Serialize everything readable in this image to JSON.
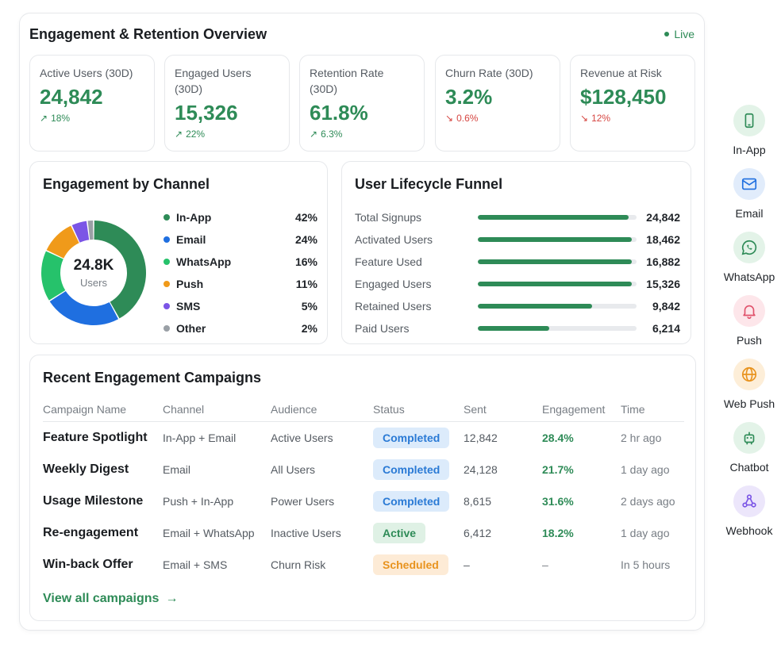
{
  "header": {
    "title": "Engagement & Retention Overview",
    "live": "Live"
  },
  "kpis": [
    {
      "label": "Active Users (30D)",
      "value": "24,842",
      "delta": "18%",
      "trend": "up"
    },
    {
      "label": "Engaged Users (30D)",
      "value": "15,326",
      "delta": "22%",
      "trend": "up"
    },
    {
      "label": "Retention Rate (30D)",
      "value": "61.8%",
      "delta": "6.3%",
      "trend": "up"
    },
    {
      "label": "Churn Rate (30D)",
      "value": "3.2%",
      "delta": "0.6%",
      "trend": "down"
    },
    {
      "label": "Revenue at Risk",
      "value": "$128,450",
      "delta": "12%",
      "trend": "down"
    }
  ],
  "channel": {
    "title": "Engagement by Channel",
    "center_value": "24.8K",
    "center_label": "Users",
    "items": [
      {
        "name": "In-App",
        "pct": "42%",
        "value": 42,
        "color": "#2e8b57"
      },
      {
        "name": "Email",
        "pct": "24%",
        "value": 24,
        "color": "#1f6fe0"
      },
      {
        "name": "WhatsApp",
        "pct": "16%",
        "value": 16,
        "color": "#26c26b"
      },
      {
        "name": "Push",
        "pct": "11%",
        "value": 11,
        "color": "#f09a1a"
      },
      {
        "name": "SMS",
        "pct": "5%",
        "value": 5,
        "color": "#7b55e6"
      },
      {
        "name": "Other",
        "pct": "2%",
        "value": 2,
        "color": "#9aa0a6"
      }
    ]
  },
  "funnel": {
    "title": "User Lifecycle Funnel",
    "stages": [
      {
        "label": "Total Signups",
        "value": "24,842",
        "fraction": 0.95
      },
      {
        "label": "Activated Users",
        "value": "18,462",
        "fraction": 0.97
      },
      {
        "label": "Feature Used",
        "value": "16,882",
        "fraction": 0.97
      },
      {
        "label": "Engaged Users",
        "value": "15,326",
        "fraction": 0.97
      },
      {
        "label": "Retained Users",
        "value": "9,842",
        "fraction": 0.72
      },
      {
        "label": "Paid Users",
        "value": "6,214",
        "fraction": 0.45
      }
    ]
  },
  "campaigns": {
    "title": "Recent Engagement Campaigns",
    "columns": [
      "Campaign Name",
      "Channel",
      "Audience",
      "Status",
      "Sent",
      "Engagement",
      "Time"
    ],
    "rows": [
      {
        "name": "Feature Spotlight",
        "channel": "In-App + Email",
        "audience": "Active Users",
        "status": "Completed",
        "status_kind": "completed",
        "sent": "12,842",
        "engagement": "28.4%",
        "time": "2 hr ago"
      },
      {
        "name": "Weekly Digest",
        "channel": "Email",
        "audience": "All Users",
        "status": "Completed",
        "status_kind": "completed",
        "sent": "24,128",
        "engagement": "21.7%",
        "time": "1 day ago"
      },
      {
        "name": "Usage Milestone",
        "channel": "Push + In-App",
        "audience": "Power Users",
        "status": "Completed",
        "status_kind": "completed",
        "sent": "8,615",
        "engagement": "31.6%",
        "time": "2 days ago"
      },
      {
        "name": "Re-engagement",
        "channel": "Email + WhatsApp",
        "audience": "Inactive Users",
        "status": "Active",
        "status_kind": "active",
        "sent": "6,412",
        "engagement": "18.2%",
        "time": "1 day ago"
      },
      {
        "name": "Win-back Offer",
        "channel": "Email + SMS",
        "audience": "Churn Risk",
        "status": "Scheduled",
        "status_kind": "scheduled",
        "sent": "–",
        "engagement": "–",
        "time": "In 5 hours"
      }
    ],
    "view_all": "View all campaigns"
  },
  "sidebar": {
    "items": [
      {
        "label": "In-App",
        "icon": "mobile-icon",
        "bg": "#e3f3e8",
        "fg": "#2e8b57"
      },
      {
        "label": "Email",
        "icon": "mail-icon",
        "bg": "#e1ecfb",
        "fg": "#1f6fe0"
      },
      {
        "label": "WhatsApp",
        "icon": "whatsapp-icon",
        "bg": "#e3f3e8",
        "fg": "#2e8b57"
      },
      {
        "label": "Push",
        "icon": "bell-icon",
        "bg": "#fde6ea",
        "fg": "#e0526b"
      },
      {
        "label": "Web Push",
        "icon": "globe-icon",
        "bg": "#fdeed8",
        "fg": "#e8931e"
      },
      {
        "label": "Chatbot",
        "icon": "robot-icon",
        "bg": "#e3f3e8",
        "fg": "#2e8b57"
      },
      {
        "label": "Webhook",
        "icon": "webhook-icon",
        "bg": "#ece6fb",
        "fg": "#7b55e6"
      }
    ]
  }
}
